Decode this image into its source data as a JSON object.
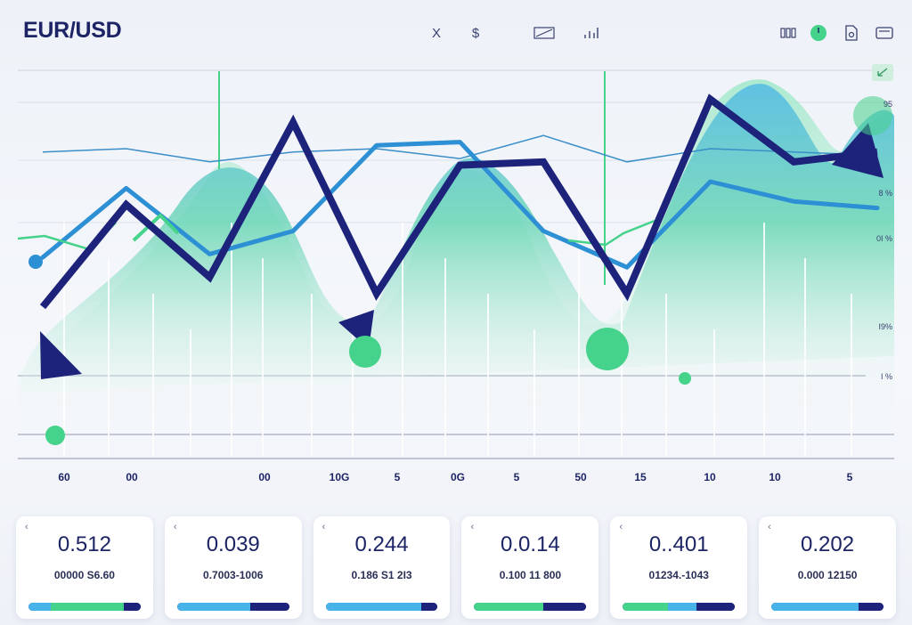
{
  "title": "EUR/USD",
  "toolbar": {
    "center_icons": [
      {
        "name": "close-x-icon",
        "glyph": "X"
      },
      {
        "name": "dollar-icon",
        "glyph": "$"
      },
      {
        "name": "trend-line-icon",
        "glyph": "⟋"
      },
      {
        "name": "bar-chart-icon",
        "glyph": "ıll"
      }
    ],
    "right_icons": [
      {
        "name": "grid-icon",
        "glyph": "ⵖ"
      },
      {
        "name": "clock-icon",
        "glyph": "◷"
      },
      {
        "name": "file-icon",
        "glyph": "⎚"
      },
      {
        "name": "wallet-icon",
        "glyph": "▭"
      }
    ],
    "corner_button_icon": "expand-icon"
  },
  "colors": {
    "title": "#1d2465",
    "dark_blue": "#1d237a",
    "blue": "#47b3e8",
    "green": "#45d28a"
  },
  "chart_data": {
    "type": "line",
    "title": "EUR/USD",
    "x_tick_labels": [
      "60",
      "00",
      "00",
      "10G",
      "5",
      "0G",
      "5",
      "50",
      "15",
      "10",
      "10",
      "5"
    ],
    "y_tick_labels": [
      "95",
      "8 %",
      "0I %",
      "I9%",
      "I %"
    ],
    "grid": true,
    "series": [
      {
        "values": [
          0.42,
          0.73,
          0.51,
          0.98,
          0.46,
          0.85,
          0.86,
          0.46,
          1.05,
          0.86,
          0.89
        ]
      },
      {
        "values": [
          0.57,
          0.78,
          0.58,
          0.65,
          0.91,
          0.92,
          0.65,
          0.54,
          0.8,
          0.74,
          0.72
        ]
      },
      {
        "values": [
          0.89,
          0.9,
          0.86,
          0.89,
          0.9,
          0.87,
          0.94,
          0.86,
          0.9,
          0.89,
          0.88
        ]
      }
    ]
  },
  "cards": [
    {
      "value": "0.512",
      "sub": "00000 S6.60",
      "bar": [
        {
          "c": "blue",
          "w": 20
        },
        {
          "c": "green",
          "w": 65
        },
        {
          "c": "dark",
          "w": 15
        }
      ]
    },
    {
      "value": "0.039",
      "sub": "0.7003-1006",
      "bar": [
        {
          "c": "blue",
          "w": 65
        },
        {
          "c": "dark",
          "w": 35
        }
      ]
    },
    {
      "value": "0.244",
      "sub": "0.186 S1 2I3",
      "bar": [
        {
          "c": "blue",
          "w": 85
        },
        {
          "c": "dark",
          "w": 15
        }
      ]
    },
    {
      "value": "0.0.14",
      "sub": "0.100 11 800",
      "bar": [
        {
          "c": "green",
          "w": 62
        },
        {
          "c": "dark",
          "w": 38
        }
      ]
    },
    {
      "value": "0..401",
      "sub": "01234.-1043",
      "bar": [
        {
          "c": "green",
          "w": 40
        },
        {
          "c": "blue",
          "w": 26
        },
        {
          "c": "dark",
          "w": 34
        }
      ]
    },
    {
      "value": "0.202",
      "sub": "0.000 12150",
      "bar": [
        {
          "c": "blue",
          "w": 78
        },
        {
          "c": "dark",
          "w": 22
        }
      ]
    }
  ]
}
